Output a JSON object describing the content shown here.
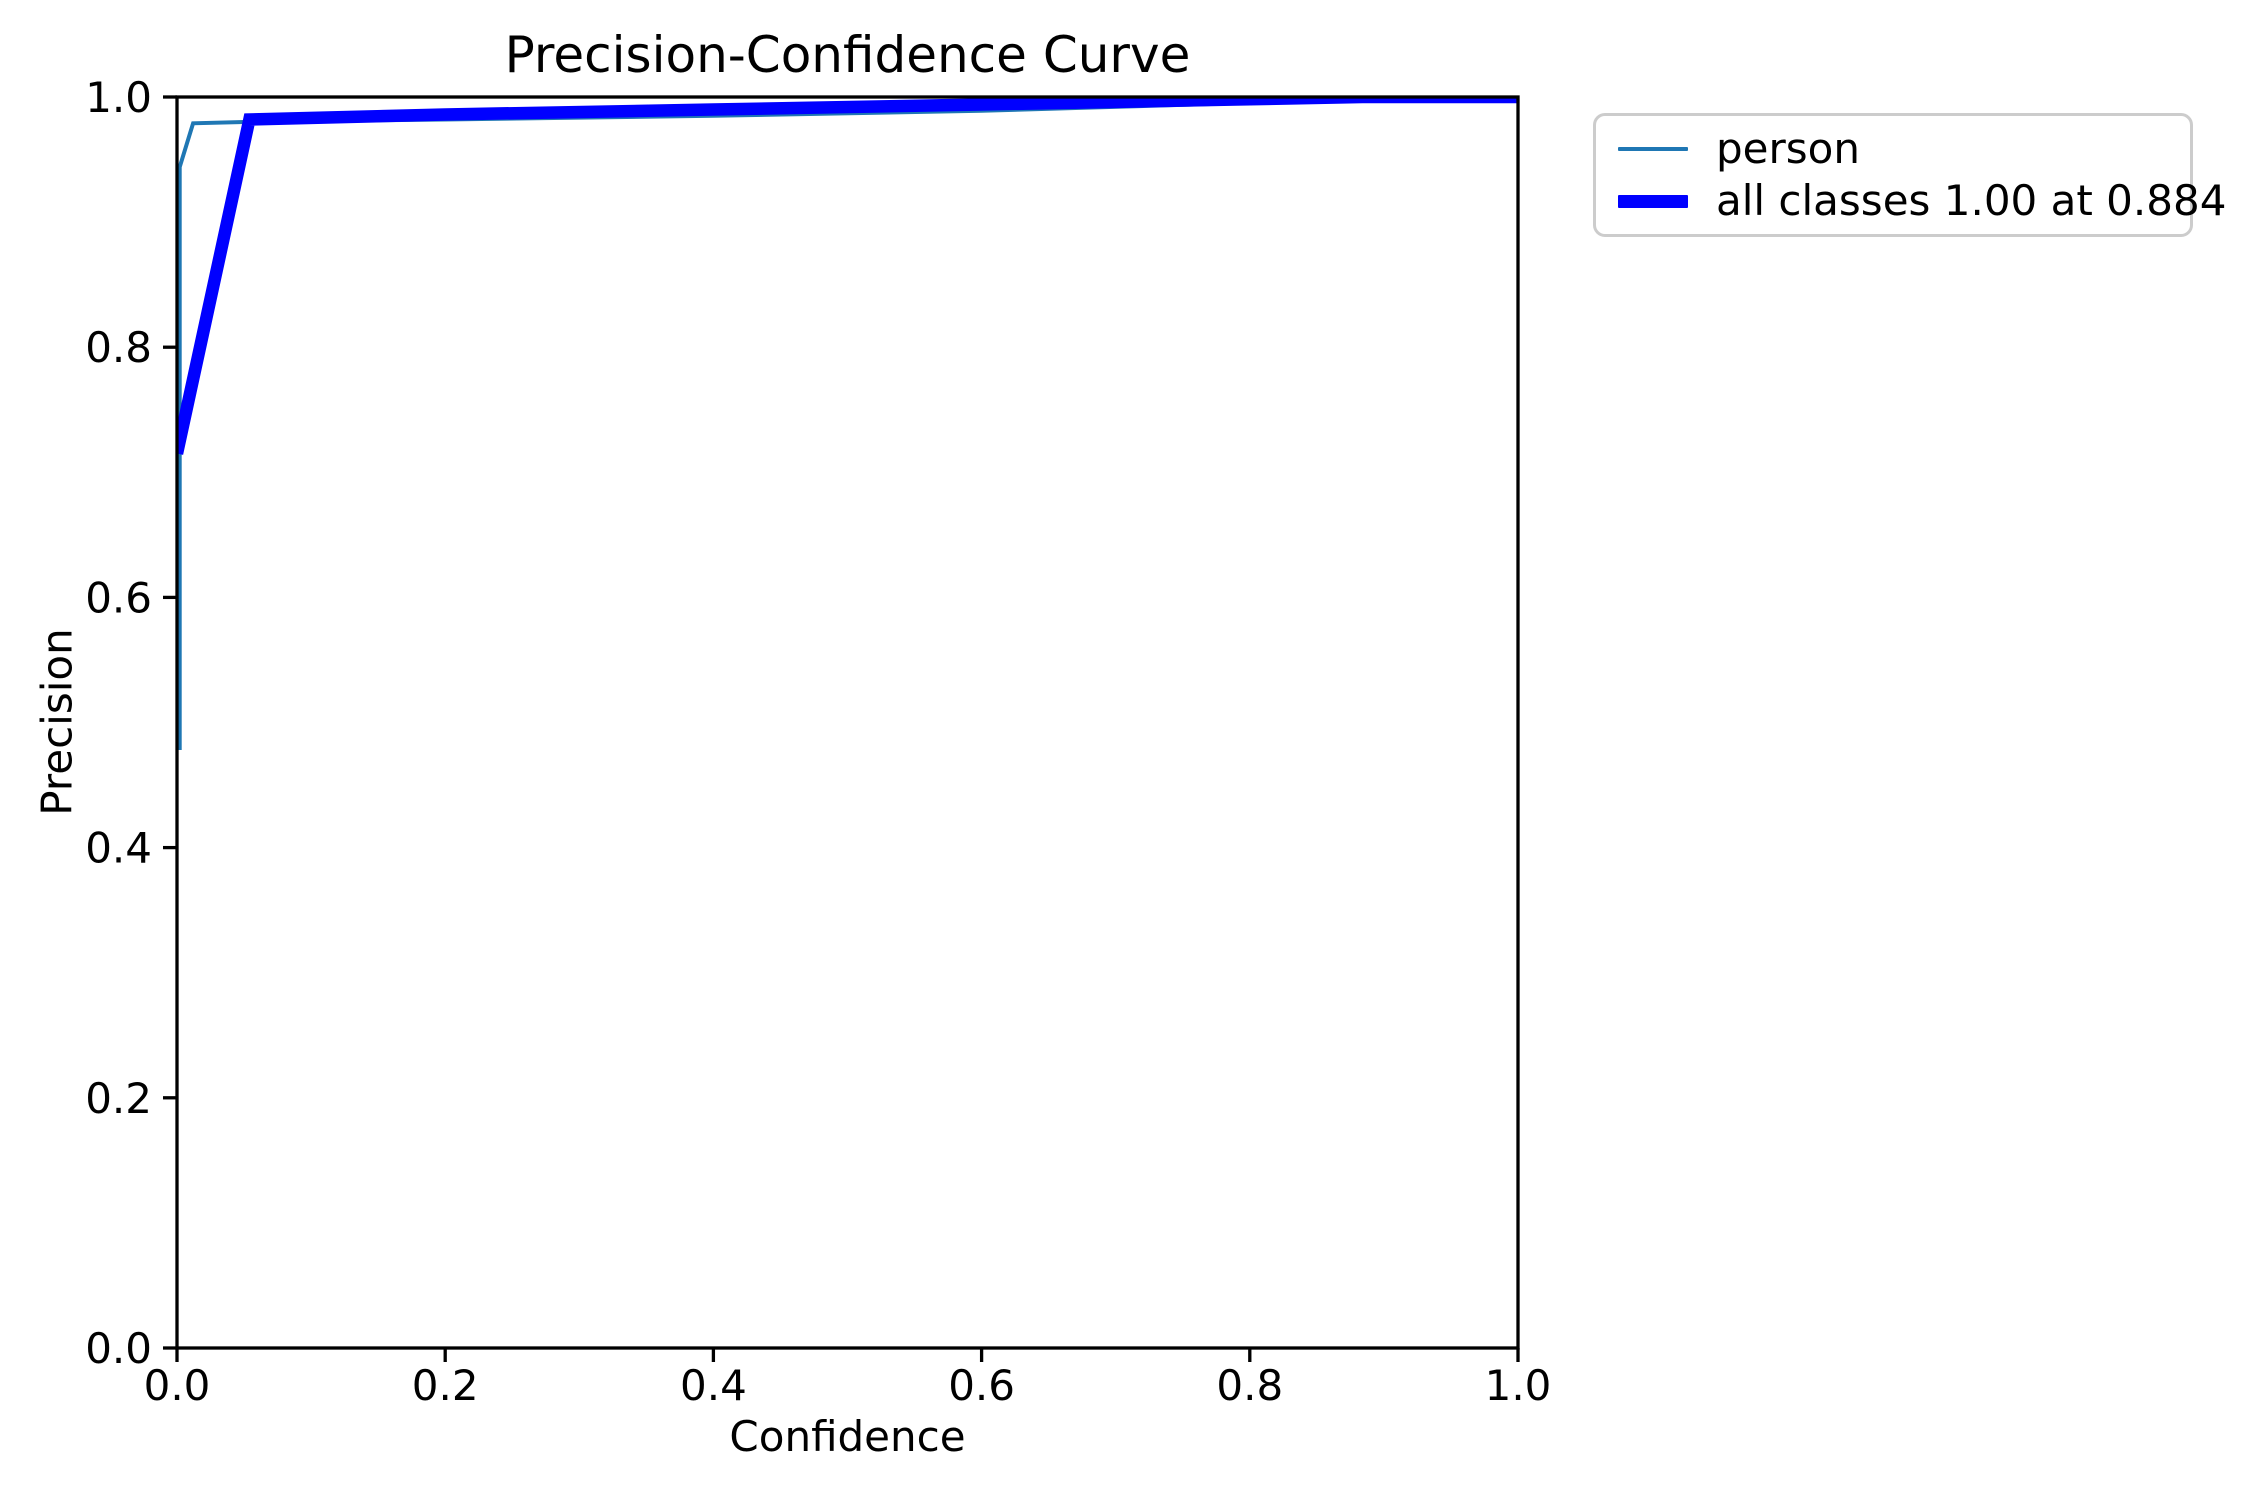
{
  "figure": {
    "background_color": "#ffffff",
    "kind": "matplotlib precision-confidence plot"
  },
  "chart_data": {
    "type": "line",
    "title": "Precision-Confidence Curve",
    "xlabel": "Confidence",
    "ylabel": "Precision",
    "xlim": [
      0.0,
      1.0
    ],
    "ylim": [
      0.0,
      1.0
    ],
    "grid": false,
    "xticks": {
      "values": [
        0.0,
        0.2,
        0.4,
        0.6,
        0.8,
        1.0
      ],
      "labels": [
        "0.0",
        "0.2",
        "0.4",
        "0.6",
        "0.8",
        "1.0"
      ]
    },
    "yticks": {
      "values": [
        0.0,
        0.2,
        0.4,
        0.6,
        0.8,
        1.0
      ],
      "labels": [
        "0.0",
        "0.2",
        "0.4",
        "0.6",
        "0.8",
        "1.0"
      ]
    },
    "axis_color": "#000000",
    "series": [
      {
        "name": "person",
        "color": "#1f77b4",
        "linewidth": 4,
        "points": [
          [
            0.002,
            0.478
          ],
          [
            0.002,
            0.944
          ],
          [
            0.012,
            0.979
          ],
          [
            0.05,
            0.98
          ],
          [
            0.2,
            0.982
          ],
          [
            0.4,
            0.985
          ],
          [
            0.6,
            0.989
          ],
          [
            0.79,
            0.995
          ],
          [
            0.884,
            1.0
          ],
          [
            1.0,
            1.0
          ]
        ]
      },
      {
        "name": "all classes 1.00 at 0.884",
        "color": "#0000ff",
        "linewidth": 12.5,
        "points": [
          [
            0.0,
            0.715
          ],
          [
            0.054,
            0.982
          ],
          [
            0.2,
            0.986
          ],
          [
            0.4,
            0.99
          ],
          [
            0.6,
            0.994
          ],
          [
            0.79,
            0.998
          ],
          [
            0.884,
            1.0
          ],
          [
            1.0,
            1.0
          ]
        ]
      }
    ],
    "legend": {
      "position": "outside-upper-right",
      "border_color": "#cccccc",
      "entries": [
        {
          "label": "person",
          "color": "#1f77b4",
          "linewidth": 4
        },
        {
          "label": "all classes 1.00 at 0.884",
          "color": "#0000ff",
          "linewidth": 12.5
        }
      ]
    },
    "annotations": {
      "best_all_classes_precision": "1.00",
      "best_all_classes_confidence": "0.884"
    }
  }
}
